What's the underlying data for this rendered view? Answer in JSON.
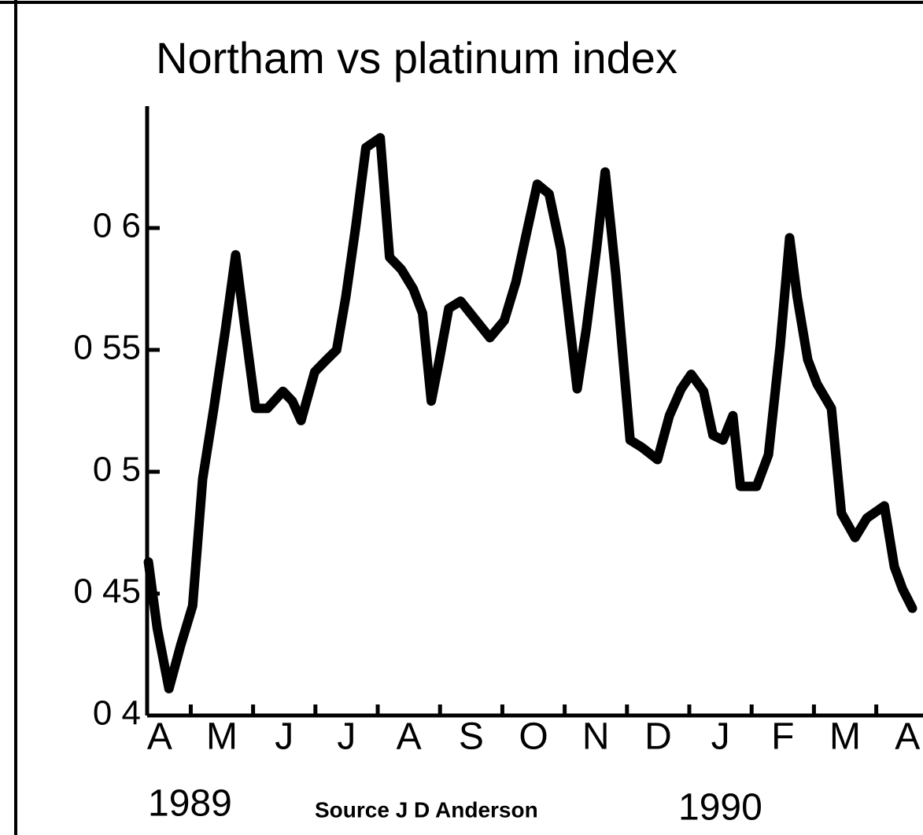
{
  "chart_data": {
    "type": "line",
    "title": "Northam vs platinum index",
    "categories": [
      "A",
      "M",
      "J",
      "J",
      "A",
      "S",
      "O",
      "N",
      "D",
      "J",
      "F",
      "M",
      "A"
    ],
    "annotations": [
      "1989",
      "Source J D Anderson",
      "1990"
    ],
    "xlim": [
      0.3,
      12.75
    ],
    "xticks": [
      1,
      2,
      3,
      4,
      5,
      6,
      7,
      8,
      9,
      10,
      11,
      12
    ],
    "ylim": [
      0.4,
      0.65
    ],
    "yticks": [
      {
        "value": 0.4,
        "label": "0 4"
      },
      {
        "value": 0.45,
        "label": "0 45"
      },
      {
        "value": 0.5,
        "label": "0 5"
      },
      {
        "value": 0.55,
        "label": "0 55"
      },
      {
        "value": 0.6,
        "label": "0 6"
      }
    ],
    "color": "#000000",
    "x": [
      0.32,
      0.46,
      0.65,
      0.84,
      1.03,
      1.19,
      1.37,
      1.56,
      1.72,
      1.87,
      2.04,
      2.23,
      2.48,
      2.63,
      2.77,
      2.99,
      3.18,
      3.34,
      3.49,
      3.65,
      3.81,
      4.04,
      4.19,
      4.38,
      4.57,
      4.72,
      4.86,
      4.99,
      5.14,
      5.33,
      5.58,
      5.8,
      6.03,
      6.22,
      6.38,
      6.56,
      6.75,
      6.94,
      7.06,
      7.2,
      7.35,
      7.51,
      7.65,
      7.82,
      8.05,
      8.24,
      8.49,
      8.68,
      8.87,
      9.03,
      9.23,
      9.38,
      9.54,
      9.7,
      9.82,
      10.08,
      10.27,
      10.46,
      10.61,
      10.73,
      10.9,
      11.05,
      11.28,
      11.44,
      11.66,
      11.85,
      12.13,
      12.29,
      12.42,
      12.58
    ],
    "values": [
      0.463,
      0.436,
      0.411,
      0.429,
      0.445,
      0.497,
      0.526,
      0.559,
      0.589,
      0.559,
      0.526,
      0.526,
      0.533,
      0.529,
      0.521,
      0.541,
      0.546,
      0.55,
      0.572,
      0.601,
      0.633,
      0.637,
      0.588,
      0.583,
      0.575,
      0.565,
      0.529,
      0.546,
      0.567,
      0.57,
      0.562,
      0.555,
      0.562,
      0.578,
      0.597,
      0.618,
      0.614,
      0.591,
      0.565,
      0.534,
      0.559,
      0.591,
      0.623,
      0.581,
      0.513,
      0.51,
      0.505,
      0.523,
      0.534,
      0.54,
      0.533,
      0.515,
      0.513,
      0.523,
      0.494,
      0.494,
      0.507,
      0.552,
      0.596,
      0.572,
      0.546,
      0.536,
      0.526,
      0.483,
      0.473,
      0.481,
      0.486,
      0.461,
      0.452,
      0.444
    ]
  }
}
